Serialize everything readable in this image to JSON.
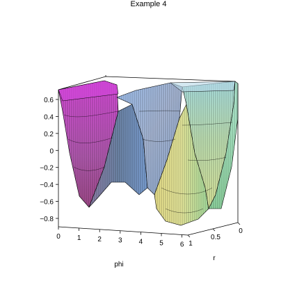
{
  "chart_data": {
    "type": "surface3d",
    "title": "Example 4",
    "xlabel": "phi",
    "ylabel": "r",
    "zlabel": "",
    "x_range": [
      0,
      6.283
    ],
    "y_range": [
      0,
      1
    ],
    "z_range": [
      -0.9,
      0.7
    ],
    "x_ticks": [
      0,
      1,
      2,
      3,
      4,
      5,
      6
    ],
    "x_tick_labels": [
      "0",
      "1",
      "2",
      "3",
      "4",
      "5",
      "6"
    ],
    "y_ticks": [
      1,
      0.5,
      0
    ],
    "y_tick_labels": [
      "1",
      "0.5",
      "0"
    ],
    "z_ticks": [
      0.6,
      0.4,
      0.2,
      0,
      -0.2,
      -0.4,
      -0.6,
      -0.8
    ],
    "z_tick_labels": [
      "0.6",
      "0.4",
      "0.2",
      "0",
      "−0.2",
      "−0.4",
      "−0.6",
      "−0.8"
    ],
    "surface_description": "undulating surface over phi in [0, 2pi] and r in [0, 1] with peaks near phi=0, phi=pi, phi=2pi and troughs near phi=1.3 and phi=4.9",
    "box": true,
    "grid": false,
    "shading": "rainbow"
  }
}
